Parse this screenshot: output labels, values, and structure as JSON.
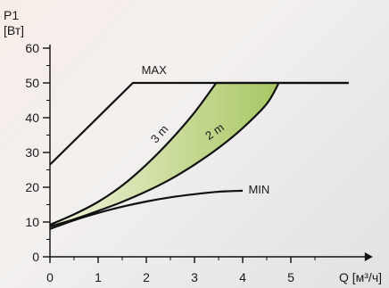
{
  "chart_data": {
    "type": "line",
    "title": "",
    "ylabel_lines": [
      "P1",
      "[Вт]"
    ],
    "xlabel": "Q [м³/ч]",
    "xlim": [
      0,
      6.7
    ],
    "ylim": [
      0,
      60
    ],
    "x_ticks": [
      0,
      1,
      2,
      3,
      4,
      5
    ],
    "y_ticks": [
      0,
      10,
      20,
      30,
      40,
      50,
      60
    ],
    "grid": false,
    "legend": "none",
    "series": [
      {
        "name": "MAX",
        "label_at": [
          1.9,
          52.6
        ],
        "label_rotation": 0,
        "color": "#111111",
        "x": [
          0,
          1.72,
          6.2
        ],
        "y": [
          26.5,
          50,
          50
        ]
      },
      {
        "name": "3 m",
        "label_at": [
          2.2,
          32.5
        ],
        "label_rotation": -48,
        "color": "#111111",
        "x": [
          0,
          0.5,
          1.0,
          1.5,
          2.0,
          2.5,
          3.0,
          3.45,
          6.2
        ],
        "y": [
          9.2,
          12.2,
          15.8,
          20.5,
          26.5,
          33.5,
          41.5,
          50,
          50
        ]
      },
      {
        "name": "2 m",
        "label_at": [
          3.3,
          33.5
        ],
        "label_rotation": -35,
        "color": "#111111",
        "x": [
          0,
          0.5,
          1.0,
          1.5,
          2.0,
          2.5,
          3.0,
          3.5,
          4.0,
          4.5,
          4.75
        ],
        "y": [
          8.7,
          10.8,
          13.2,
          15.8,
          18.8,
          22.3,
          26.5,
          31.3,
          37.0,
          44.0,
          50
        ]
      },
      {
        "name": "MIN",
        "label_at": [
          4.12,
          18.2
        ],
        "label_rotation": 0,
        "color": "#111111",
        "x": [
          0,
          0.5,
          1.0,
          1.5,
          2.0,
          2.5,
          3.0,
          3.5,
          4.0
        ],
        "y": [
          8.0,
          10.5,
          12.6,
          14.4,
          15.9,
          17.1,
          18.0,
          18.7,
          19.0
        ]
      }
    ],
    "fill_between": {
      "upper": "3 m",
      "lower": "2 m",
      "color_light": "#f1f4dc",
      "color_dark": "#a9c764"
    }
  }
}
